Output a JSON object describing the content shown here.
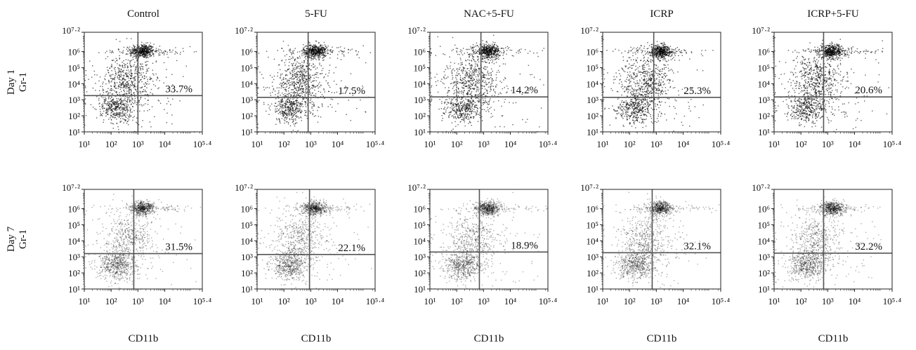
{
  "chart_data": {
    "type": "scatter",
    "x_axis": {
      "label": "CD11b",
      "scale": "log",
      "range": [
        10,
        251188.6
      ],
      "tick_labels": [
        "10¹",
        "10²",
        "10³",
        "10⁴",
        "10⁵·⁴"
      ]
    },
    "y_axis": {
      "label": "Gr-1",
      "scale": "log",
      "range": [
        10,
        15848931.9
      ],
      "tick_labels": [
        "10¹",
        "10²",
        "10³",
        "10⁴",
        "10⁵",
        "10⁶",
        "10⁷·²"
      ]
    },
    "columns": [
      "Control",
      "5-FU",
      "NAC+5-FU",
      "ICRP",
      "ICRP+5-FU"
    ],
    "rows": [
      "Day 1",
      "Day 7"
    ],
    "panels": [
      {
        "row": "Day 1",
        "group": "Control",
        "gate_x": 1000,
        "gate_y": 1800,
        "percent": "33.7%"
      },
      {
        "row": "Day 1",
        "group": "5-FU",
        "gate_x": 800,
        "gate_y": 1400,
        "percent": "17.5%"
      },
      {
        "row": "Day 1",
        "group": "NAC+5-FU",
        "gate_x": 800,
        "gate_y": 1500,
        "percent": "14.2%"
      },
      {
        "row": "Day 1",
        "group": "ICRP",
        "gate_x": 800,
        "gate_y": 1400,
        "percent": "25.3%"
      },
      {
        "row": "Day 1",
        "group": "ICRP+5-FU",
        "gate_x": 700,
        "gate_y": 1500,
        "percent": "20.6%"
      },
      {
        "row": "Day 7",
        "group": "Control",
        "gate_x": 700,
        "gate_y": 1600,
        "percent": "31.5%"
      },
      {
        "row": "Day 7",
        "group": "5-FU",
        "gate_x": 900,
        "gate_y": 1400,
        "percent": "22.1%"
      },
      {
        "row": "Day 7",
        "group": "NAC+5-FU",
        "gate_x": 700,
        "gate_y": 2000,
        "percent": "18.9%"
      },
      {
        "row": "Day 7",
        "group": "ICRP",
        "gate_x": 700,
        "gate_y": 1800,
        "percent": "32.1%"
      },
      {
        "row": "Day 7",
        "group": "ICRP+5-FU",
        "gate_x": 700,
        "gate_y": 1700,
        "percent": "32.2%"
      }
    ]
  }
}
